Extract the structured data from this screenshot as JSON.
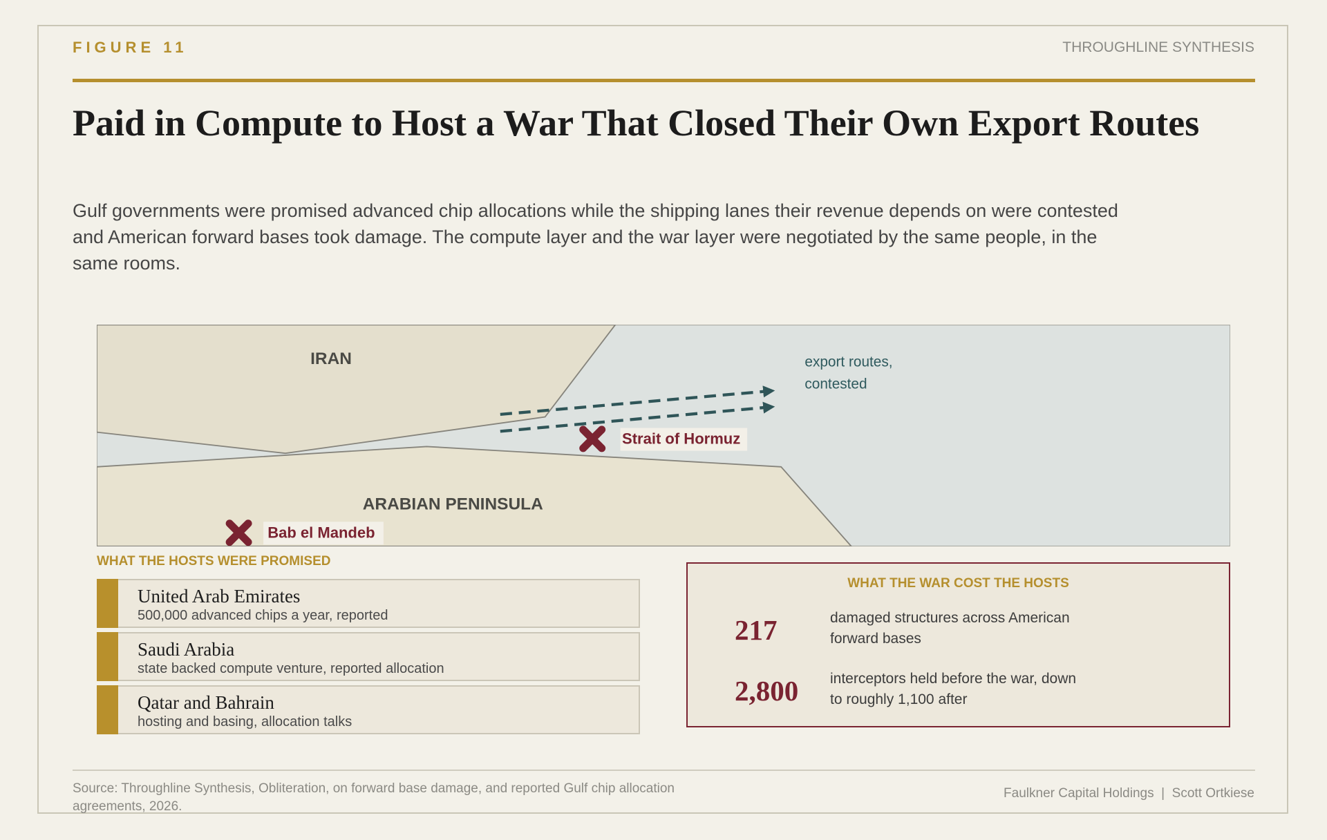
{
  "header": {
    "figure": "FIGURE 11",
    "publisher": "THROUGHLINE SYNTHESIS"
  },
  "title": "Paid in Compute to Host a War That Closed Their Own Export Routes",
  "subtitle": "Gulf governments were promised advanced chip allocations while the shipping lanes their revenue depends on were contested and American forward bases took damage. The compute layer and the war layer were negotiated by the same people, in the same rooms.",
  "map": {
    "regions": [
      "IRAN",
      "ARABIAN PENINSULA"
    ],
    "routes_label": [
      "export routes,",
      "contested"
    ],
    "markers": [
      "Strait of Hormuz",
      "Bab el Mandeb"
    ]
  },
  "promised": {
    "heading": "WHAT THE HOSTS WERE PROMISED",
    "items": [
      {
        "name": "United Arab Emirates",
        "detail": "500,000 advanced chips a year, reported"
      },
      {
        "name": "Saudi Arabia",
        "detail": "state backed compute venture, reported allocation"
      },
      {
        "name": "Qatar and Bahrain",
        "detail": "hosting and basing, allocation talks"
      }
    ]
  },
  "cost": {
    "heading": "WHAT THE WAR COST THE HOSTS",
    "stats": [
      {
        "value": "217",
        "text": "damaged structures across American forward bases"
      },
      {
        "value": "2,800",
        "text": "interceptors held before the war, down to roughly 1,100 after"
      }
    ]
  },
  "footer": {
    "source": "Source: Throughline Synthesis, Obliteration, on forward base damage, and reported Gulf chip allocation agreements, 2026.",
    "credits": [
      "Faulkner Capital Holdings",
      "Scott Ortkiese"
    ]
  }
}
